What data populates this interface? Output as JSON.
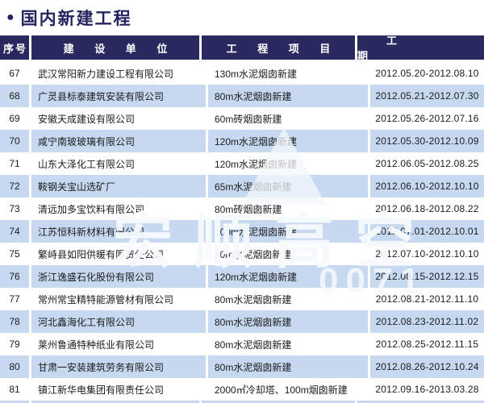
{
  "title": {
    "bullet": "●",
    "text": "国内新建工程"
  },
  "colors": {
    "header_bg": "#29295f",
    "title_color": "#23235f",
    "row_alt_bg": "#c6d9f0"
  },
  "table": {
    "headers": {
      "no": "序号",
      "company": "建 设 单 位",
      "project": "工 程 项 目",
      "period": "工 期"
    },
    "rows": [
      {
        "no": "67",
        "company": "武汉常阳新力建设工程有限公司",
        "project": "130m水泥烟囱新建",
        "period": "2012.05.20-2012.08.10"
      },
      {
        "no": "68",
        "company": "广灵县标泰建筑安装有限公司",
        "project": "80m水泥烟囱新建",
        "period": "2012.05.21-2012.07.30"
      },
      {
        "no": "69",
        "company": "安徽天成建设有限公司",
        "project": "60m砖烟囱新建",
        "period": "2012.05.26-2012.07.16"
      },
      {
        "no": "70",
        "company": "咸宁南玻玻璃有限公司",
        "project": "120m水泥烟囱新建",
        "period": "2012.05.30-2012.10.09"
      },
      {
        "no": "71",
        "company": "山东大泽化工有限公司",
        "project": "120m水泥烟囱新建",
        "period": "2012.06.05-2012.08.25"
      },
      {
        "no": "72",
        "company": "鞍钢关宝山选矿厂",
        "project": "65m水泥烟囱新建",
        "period": "2012.06.10-2012.10.10"
      },
      {
        "no": "73",
        "company": "清远加多宝饮料有限公司",
        "project": "80m砖烟囱新建",
        "period": "2012.06.18-2012.08.22"
      },
      {
        "no": "74",
        "company": "江苏恒科新材料有限公司",
        "project": "100m水泥烟囱新建",
        "period": "2012.07.01-2012.10.01"
      },
      {
        "no": "75",
        "company": "繁峙县如阳供暖有限责任公司",
        "project": "80m水泥烟囱新建",
        "period": "2012.07.10-2012.10.10"
      },
      {
        "no": "76",
        "company": "浙江逸盛石化股份有限公司",
        "project": "120m水泥烟囱新建",
        "period": "2012.08.15-2012.12.15"
      },
      {
        "no": "77",
        "company": "常州常宝精特能源管材有限公司",
        "project": "80m水泥烟囱新建",
        "period": "2012.08.21-2012.11.10"
      },
      {
        "no": "78",
        "company": "河北鑫海化工有限公司",
        "project": "80m水泥烟囱新建",
        "period": "2012.08.23-2012.11.02"
      },
      {
        "no": "79",
        "company": "莱州鲁通特种纸业有限公司",
        "project": "80m水泥烟囱新建",
        "period": "2012.08.25-2012.11.15"
      },
      {
        "no": "80",
        "company": "甘肃一安装建筑劳务有限公司",
        "project": "80m水泥烟囱新建",
        "period": "2012.08.26-2012.10.24"
      },
      {
        "no": "81",
        "company": "镇江新华电集团有限责任公司",
        "project": "2000㎡冷却塔、100m烟囱新建",
        "period": "2012.09.16-2013.03.28"
      }
    ]
  },
  "watermark": {
    "text": "宏顺高空",
    "digits": "0071"
  }
}
